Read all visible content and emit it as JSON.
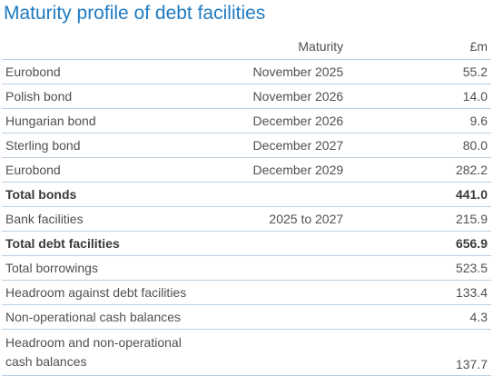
{
  "header": {
    "title": "Maturity profile of debt facilities"
  },
  "table": {
    "columns": [
      null,
      "Maturity",
      "£m"
    ],
    "rows": [
      {
        "cells": [
          "Eurobond",
          "November 2025",
          "55.2"
        ]
      },
      {
        "cells": [
          "Polish bond",
          "November 2026",
          "14.0"
        ]
      },
      {
        "cells": [
          "Hungarian bond",
          "December 2026",
          "9.6"
        ]
      },
      {
        "cells": [
          "Sterling bond",
          "December 2027",
          "80.0"
        ]
      },
      {
        "cells": [
          "Eurobond",
          "December 2029",
          "282.2"
        ]
      },
      {
        "cells": [
          "Total bonds",
          null,
          "441.0"
        ],
        "bold": true
      },
      {
        "cells": [
          "Bank facilities",
          "2025 to 2027",
          "215.9"
        ]
      },
      {
        "cells": [
          "Total debt facilities",
          null,
          "656.9"
        ],
        "bold": true
      },
      {
        "cells": [
          "Total borrowings",
          null,
          "523.5"
        ]
      },
      {
        "cells": [
          "Headroom against debt facilities",
          null,
          "133.4"
        ]
      },
      {
        "cells": [
          "Non-operational cash balances",
          null,
          "4.3"
        ]
      },
      {
        "cells": [
          "Headroom and non-operational cash balances",
          null,
          "137.7"
        ]
      }
    ]
  }
}
